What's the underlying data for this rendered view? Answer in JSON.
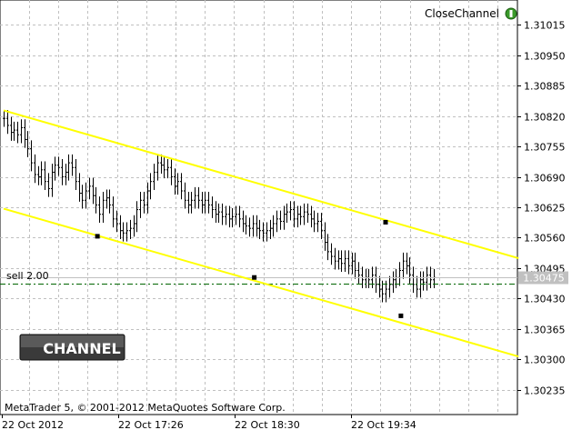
{
  "indicator": {
    "name": "CloseChannel",
    "icon": "green-indicator-icon"
  },
  "footer": {
    "copyright": "MetaTrader 5, © 2001-2012 MetaQuotes Software Corp."
  },
  "order_line": {
    "label": "sell 2.00",
    "price": 1.30462,
    "color": "#006400"
  },
  "button": {
    "label": "CHANNEL",
    "icon": "channel-stripes-icon"
  },
  "colors": {
    "channel": "#ffff00",
    "bars": "#000000",
    "grid": "#c0c0c0",
    "bid_line": "#c0c0c0",
    "price_tag_bg": "#c0c0c0"
  },
  "chart_data": {
    "type": "bar",
    "symbol_timeframe_shown": false,
    "x_tick_labels": [
      "22 Oct 2012",
      "22 Oct 17:26",
      "22 Oct 18:30",
      "22 Oct 19:34"
    ],
    "y_ticks": [
      1.30235,
      1.303,
      1.30365,
      1.3043,
      1.30495,
      1.3056,
      1.30625,
      1.3069,
      1.30755,
      1.3082,
      1.30885,
      1.3095,
      1.31015
    ],
    "ylim": [
      1.30182,
      1.31068
    ],
    "current_price_label": "1.30475",
    "closes": [
      1.30815,
      1.308,
      1.30785,
      1.3079,
      1.3078,
      1.30795,
      1.3077,
      1.3075,
      1.3072,
      1.30695,
      1.3069,
      1.30705,
      1.3068,
      1.30665,
      1.307,
      1.30715,
      1.3071,
      1.3069,
      1.307,
      1.3072,
      1.3071,
      1.3068,
      1.30655,
      1.3064,
      1.3066,
      1.3067,
      1.3065,
      1.3063,
      1.3061,
      1.3064,
      1.30645,
      1.3063,
      1.306,
      1.3059,
      1.30575,
      1.3057,
      1.30575,
      1.3058,
      1.3059,
      1.3062,
      1.3064,
      1.3063,
      1.3066,
      1.3068,
      1.307,
      1.3072,
      1.30715,
      1.30705,
      1.3071,
      1.3069,
      1.3067,
      1.3068,
      1.3066,
      1.3064,
      1.3063,
      1.3064,
      1.3065,
      1.3064,
      1.3063,
      1.3064,
      1.3063,
      1.3062,
      1.3061,
      1.30615,
      1.30605,
      1.3061,
      1.306,
      1.30605,
      1.3061,
      1.306,
      1.3059,
      1.30585,
      1.3058,
      1.3059,
      1.3058,
      1.30575,
      1.3057,
      1.30575,
      1.3058,
      1.3059,
      1.306,
      1.30595,
      1.3061,
      1.30615,
      1.3062,
      1.306,
      1.3061,
      1.30605,
      1.30615,
      1.3061,
      1.306,
      1.3059,
      1.30595,
      1.30575,
      1.3055,
      1.3053,
      1.3052,
      1.3051,
      1.30515,
      1.30505,
      1.30515,
      1.305,
      1.3051,
      1.3049,
      1.3048,
      1.3047,
      1.30475,
      1.3047,
      1.3048,
      1.3046,
      1.3045,
      1.3044,
      1.3045,
      1.3046,
      1.3047,
      1.30475,
      1.3049,
      1.3051,
      1.305,
      1.3048,
      1.3046,
      1.3045,
      1.3047,
      1.30465,
      1.3048,
      1.3047,
      1.30475
    ]
  },
  "channel": {
    "upper": {
      "start": [
        0,
        1.30832
      ],
      "end": [
        151,
        1.30516
      ]
    },
    "lower": {
      "start": [
        0,
        1.30622
      ],
      "end": [
        151,
        1.30306
      ]
    },
    "anchors": [
      [
        27.5,
        1.30563
      ],
      [
        73.5,
        1.30475
      ],
      [
        112,
        1.30593
      ],
      [
        116.5,
        1.30393
      ]
    ]
  }
}
